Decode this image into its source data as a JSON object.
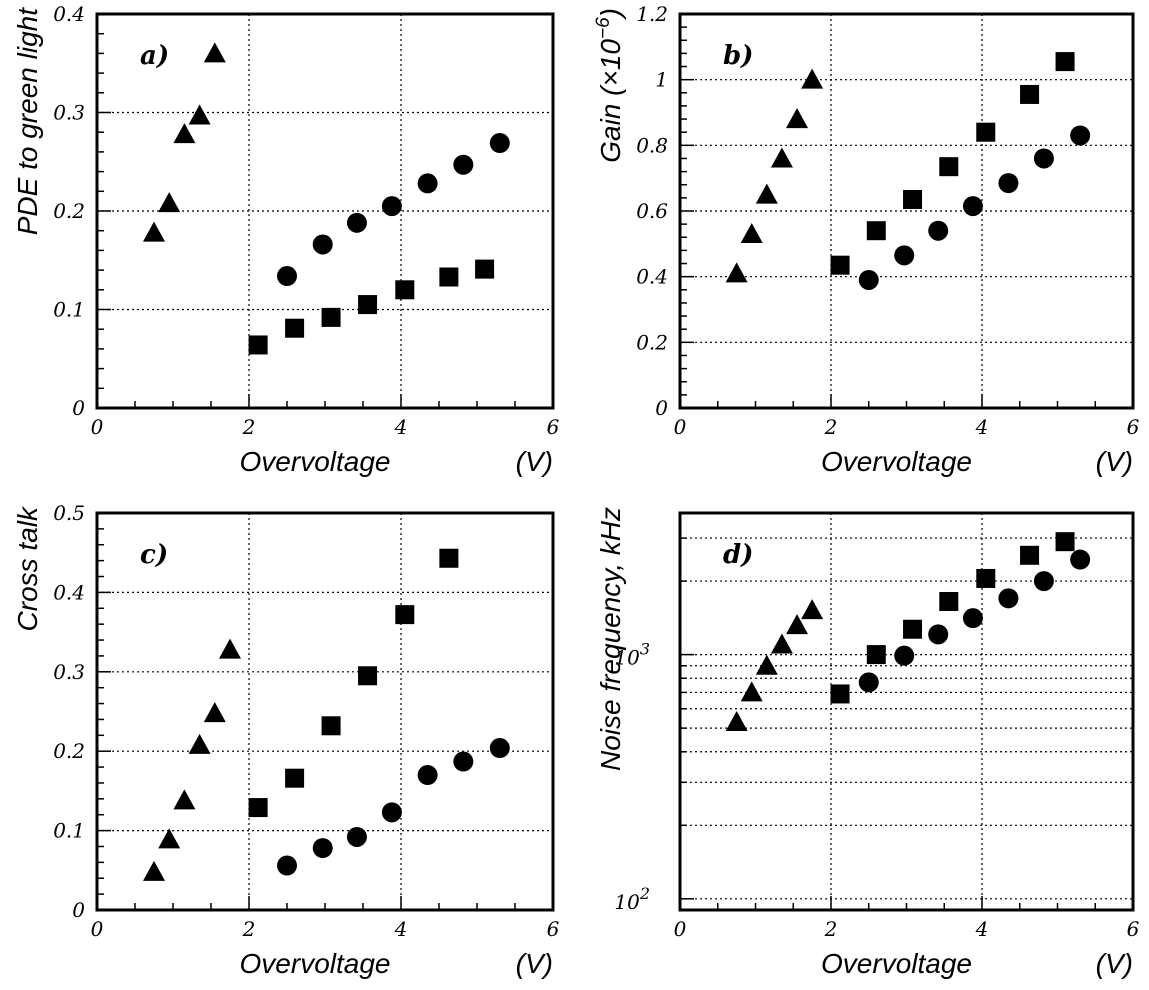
{
  "chart_data": [
    {
      "id": "a",
      "type": "scatter",
      "panel_label": "a)",
      "xlabel": "Overvoltage",
      "xunit": "(V)",
      "ylabel": "PDE to green light",
      "xlim": [
        0,
        6
      ],
      "ylim": [
        0,
        0.4
      ],
      "yscale": "linear",
      "xticks": [
        0,
        2,
        4,
        6
      ],
      "xtick_labels": [
        "0",
        "2",
        "4",
        "6"
      ],
      "yticks": [
        0,
        0.1,
        0.2,
        0.3,
        0.4
      ],
      "ytick_labels": [
        "0",
        "0.1",
        "0.2",
        "0.3",
        "0.4"
      ],
      "grid": true,
      "series": [
        {
          "marker": "triangle",
          "x": [
            0.75,
            0.95,
            1.15,
            1.35,
            1.55
          ],
          "y": [
            0.178,
            0.208,
            0.278,
            0.297,
            0.36
          ]
        },
        {
          "marker": "circle",
          "x": [
            2.5,
            2.97,
            3.42,
            3.88,
            4.35,
            4.82,
            5.3
          ],
          "y": [
            0.134,
            0.166,
            0.188,
            0.205,
            0.228,
            0.247,
            0.269
          ]
        },
        {
          "marker": "square",
          "x": [
            2.12,
            2.6,
            3.08,
            3.56,
            4.05,
            4.63,
            5.1
          ],
          "y": [
            0.064,
            0.081,
            0.092,
            0.105,
            0.12,
            0.133,
            0.141
          ]
        }
      ]
    },
    {
      "id": "b",
      "type": "scatter",
      "panel_label": "b)",
      "xlabel": "Overvoltage",
      "xunit": "(V)",
      "ylabel": "Gain (×10",
      "ylabel_sup": "−6",
      "ylabel_tail": ")",
      "xlim": [
        0,
        6
      ],
      "ylim": [
        0,
        1.2
      ],
      "yscale": "linear",
      "xticks": [
        0,
        2,
        4,
        6
      ],
      "xtick_labels": [
        "0",
        "2",
        "4",
        "6"
      ],
      "yticks": [
        0,
        0.2,
        0.4,
        0.6,
        0.8,
        1,
        1.2
      ],
      "ytick_labels": [
        "0",
        "0.2",
        "0.4",
        "0.6",
        "0.8",
        "1",
        "1.2"
      ],
      "grid": true,
      "series": [
        {
          "marker": "triangle",
          "x": [
            0.75,
            0.95,
            1.15,
            1.35,
            1.55,
            1.75
          ],
          "y": [
            0.41,
            0.53,
            0.65,
            0.76,
            0.88,
            1.0
          ]
        },
        {
          "marker": "circle",
          "x": [
            2.5,
            2.97,
            3.42,
            3.88,
            4.35,
            4.82,
            5.3
          ],
          "y": [
            0.39,
            0.465,
            0.54,
            0.615,
            0.685,
            0.76,
            0.83
          ]
        },
        {
          "marker": "square",
          "x": [
            2.12,
            2.6,
            3.08,
            3.56,
            4.05,
            4.63,
            5.1
          ],
          "y": [
            0.435,
            0.54,
            0.635,
            0.735,
            0.84,
            0.955,
            1.055
          ]
        }
      ]
    },
    {
      "id": "c",
      "type": "scatter",
      "panel_label": "c)",
      "xlabel": "Overvoltage",
      "xunit": "(V)",
      "ylabel": "Cross talk",
      "xlim": [
        0,
        6
      ],
      "ylim": [
        0,
        0.5
      ],
      "yscale": "linear",
      "xticks": [
        0,
        2,
        4,
        6
      ],
      "xtick_labels": [
        "0",
        "2",
        "4",
        "6"
      ],
      "yticks": [
        0,
        0.1,
        0.2,
        0.3,
        0.4,
        0.5
      ],
      "ytick_labels": [
        "0",
        "0.1",
        "0.2",
        "0.3",
        "0.4",
        "0.5"
      ],
      "grid": true,
      "series": [
        {
          "marker": "triangle",
          "x": [
            0.75,
            0.95,
            1.15,
            1.35,
            1.55,
            1.75
          ],
          "y": [
            0.048,
            0.089,
            0.138,
            0.208,
            0.248,
            0.328
          ]
        },
        {
          "marker": "circle",
          "x": [
            2.5,
            2.97,
            3.42,
            3.88,
            4.35,
            4.82,
            5.3
          ],
          "y": [
            0.056,
            0.078,
            0.092,
            0.123,
            0.17,
            0.187,
            0.204
          ]
        },
        {
          "marker": "square",
          "x": [
            2.12,
            2.6,
            3.08,
            3.56,
            4.05,
            4.63
          ],
          "y": [
            0.129,
            0.166,
            0.232,
            0.295,
            0.372,
            0.443
          ]
        }
      ]
    },
    {
      "id": "d",
      "type": "scatter",
      "panel_label": "d)",
      "xlabel": "Overvoltage",
      "xunit": "(V)",
      "ylabel": "Noise frequency, kHz",
      "xlim": [
        0,
        6
      ],
      "ylim": [
        90,
        3800
      ],
      "yscale": "log",
      "xticks": [
        0,
        2,
        4,
        6
      ],
      "xtick_labels": [
        "0",
        "2",
        "4",
        "6"
      ],
      "ytick_labels_log": [
        {
          "base": "10",
          "exp": "2",
          "value": 100
        },
        {
          "base": "10",
          "exp": "3",
          "value": 1000
        }
      ],
      "grid": true,
      "series": [
        {
          "marker": "triangle",
          "x": [
            0.75,
            0.95,
            1.15,
            1.35,
            1.55,
            1.75
          ],
          "y": [
            530,
            700,
            900,
            1100,
            1320,
            1520
          ]
        },
        {
          "marker": "circle",
          "x": [
            2.5,
            2.97,
            3.42,
            3.88,
            4.35,
            4.82,
            5.3
          ],
          "y": [
            770,
            990,
            1210,
            1410,
            1700,
            2000,
            2450
          ]
        },
        {
          "marker": "square",
          "x": [
            2.12,
            2.6,
            3.08,
            3.56,
            4.05,
            4.63,
            5.1
          ],
          "y": [
            690,
            1000,
            1270,
            1650,
            2050,
            2550,
            2900
          ]
        }
      ]
    }
  ]
}
